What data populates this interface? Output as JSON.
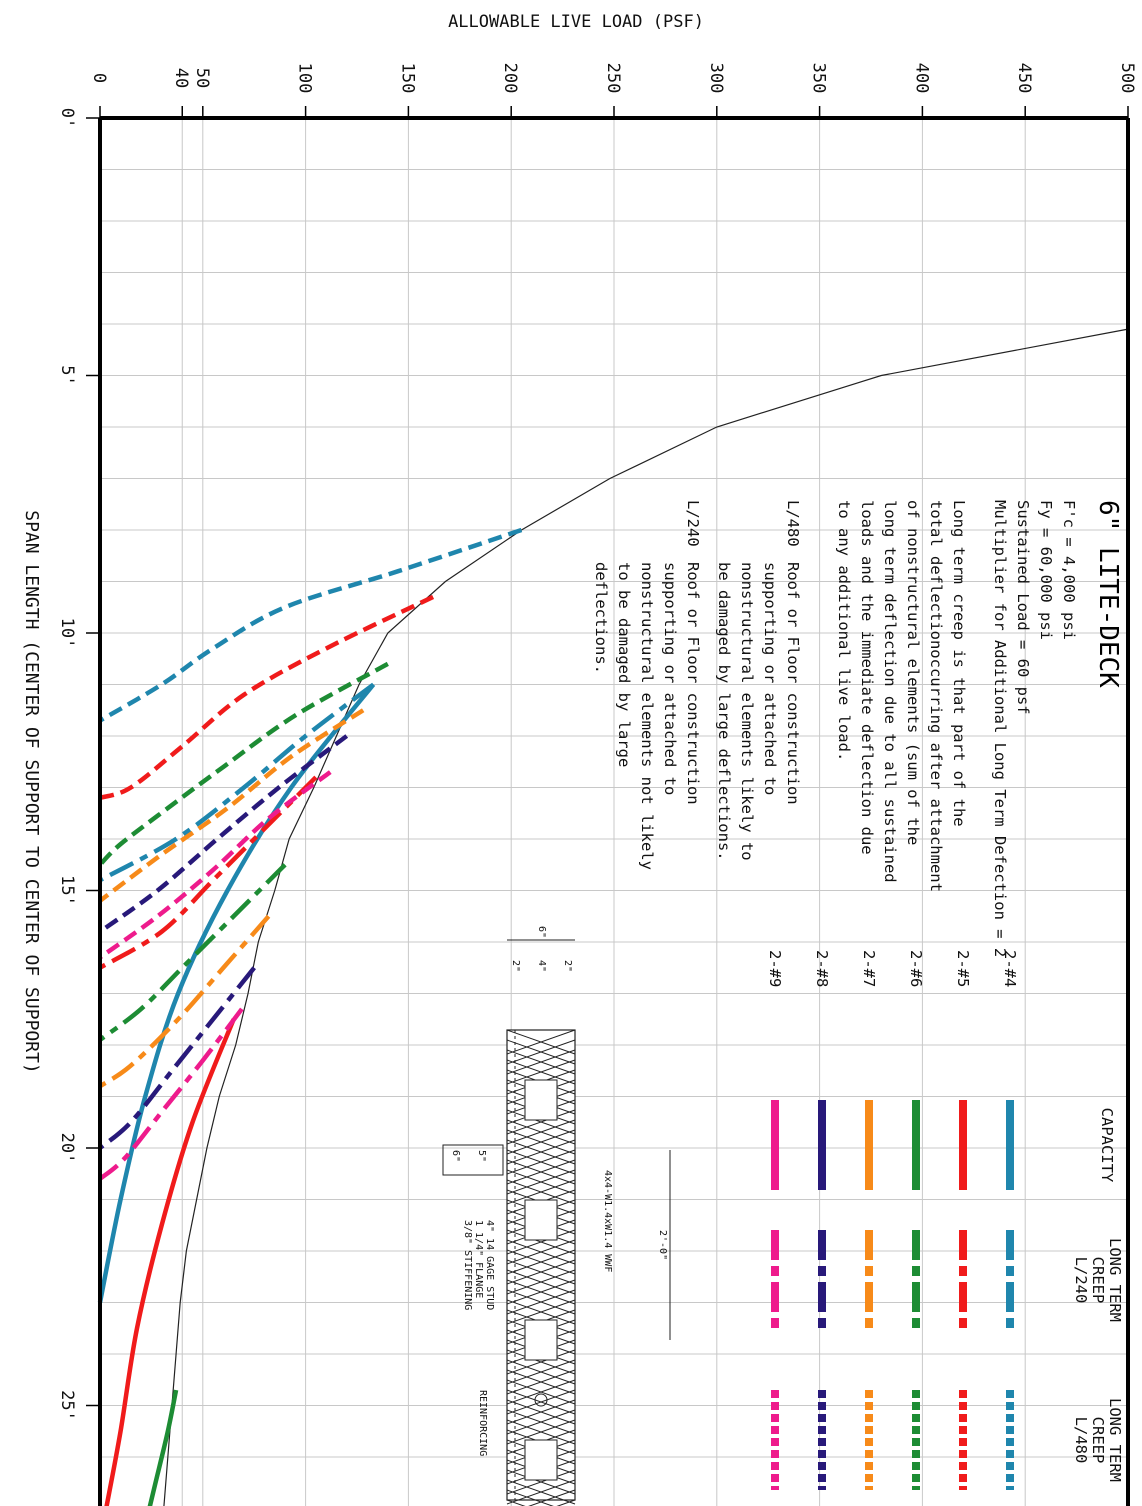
{
  "axis_top_title": "ALLOWABLE LIVE LOAD  (PSF)",
  "axis_side_title": "SPAN LENGTH   (CENTER OF SUPPORT TO CENTER OF SUPPORT)",
  "title": "6\" LITE-DECK",
  "specs": [
    "F'c = 4,000 psi",
    "Fy = 60,000 psi",
    "Sustained Load = 60 psf",
    "Multiplier for Additional Long Term Defection = 2"
  ],
  "creep_note": [
    "Long term creep is that part of the",
    "total deflectionoccurring after attachment",
    "of nonstructural elements (sum of the",
    "long term deflection due to all sustained",
    "loads and the immediate deflection due",
    "to any additional live load."
  ],
  "l480_note": {
    "label": "L/480",
    "lines": [
      "Roof or Floor construction",
      "supporting or attached to",
      "nonstructural elements likely to",
      "be damaged by large deflections."
    ]
  },
  "l240_note": {
    "label": "L/240",
    "lines": [
      "Roof or Floor construction",
      "supporting or attached to",
      "nonstructural elements not likely",
      "to be damaged by large",
      "deflections."
    ]
  },
  "legend": {
    "col_capacity": "CAPACITY",
    "col_l240": [
      "LONG TERM",
      "CREEP",
      "L/240"
    ],
    "col_l480": [
      "LONG TERM",
      "CREEP",
      "L/480"
    ],
    "rows": [
      {
        "label": "2-#4",
        "color": "#1f86ad"
      },
      {
        "label": "2-#5",
        "color": "#f01b1b"
      },
      {
        "label": "2-#6",
        "color": "#1d8c34"
      },
      {
        "label": "2-#7",
        "color": "#f78a19"
      },
      {
        "label": "2-#8",
        "color": "#28197a"
      },
      {
        "label": "2-#9",
        "color": "#ee1b8c"
      }
    ]
  },
  "detail": {
    "width_total": "6\"",
    "dims": [
      "2\"",
      "4\"",
      "2\""
    ],
    "pitch": "2'-0\"",
    "wwf": "4x4-W1.4xW1.4 WWF",
    "stud": [
      "4\" 14 GAGE STUD",
      "1 1/4\" FLANGE",
      "3/8\" STIFFENING"
    ],
    "reinforcing": "REINFORCING",
    "depth_a": "6\"",
    "depth_b": "5\""
  },
  "chart_data": {
    "type": "line",
    "title": "6\" LITE-DECK",
    "xlabel": "SPAN LENGTH   (CENTER OF SUPPORT TO CENTER OF SUPPORT)",
    "ylabel": "ALLOWABLE LIVE LOAD  (PSF)",
    "x_unit": "ft",
    "xlim": [
      0,
      27
    ],
    "ylim": [
      0,
      500
    ],
    "x_ticks": [
      0,
      5,
      10,
      15,
      20,
      25
    ],
    "x_tick_labels": [
      "0'",
      "5'",
      "10'",
      "15'",
      "20'",
      "25'"
    ],
    "y_ticks": [
      0,
      40,
      50,
      100,
      150,
      200,
      250,
      300,
      350,
      400,
      450,
      500
    ],
    "y_tick_labels": [
      "0",
      "40",
      "50",
      "100",
      "150",
      "200",
      "250",
      "300",
      "350",
      "400",
      "450",
      "500"
    ],
    "grid": true,
    "capacity_envelope": [
      [
        4.1,
        500
      ],
      [
        5,
        380
      ],
      [
        6,
        300
      ],
      [
        7,
        248
      ],
      [
        8,
        205
      ],
      [
        9,
        168
      ],
      [
        10,
        140
      ],
      [
        11,
        126
      ],
      [
        12,
        115
      ],
      [
        13,
        104
      ],
      [
        14,
        92
      ],
      [
        15,
        85
      ],
      [
        16,
        77
      ],
      [
        17,
        72
      ],
      [
        18,
        66
      ],
      [
        19,
        58
      ],
      [
        20,
        52
      ],
      [
        21,
        47
      ],
      [
        22,
        42
      ],
      [
        23,
        39
      ],
      [
        24,
        37
      ],
      [
        25,
        35
      ],
      [
        26,
        33
      ],
      [
        27,
        31
      ]
    ],
    "series": [
      {
        "name": "2-#4",
        "style": "L/480",
        "color": "#1f86ad",
        "points": [
          [
            8.0,
            205
          ],
          [
            8.8,
            145
          ],
          [
            9.5,
            90
          ],
          [
            10.3,
            55
          ],
          [
            11.0,
            30
          ],
          [
            11.7,
            0
          ]
        ]
      },
      {
        "name": "2-#4",
        "style": "L/240",
        "color": "#1f86ad",
        "points": [
          [
            11.0,
            133
          ],
          [
            12.0,
            100
          ],
          [
            13.0,
            70
          ],
          [
            14.0,
            37
          ],
          [
            14.8,
            0
          ]
        ]
      },
      {
        "name": "2-#4",
        "style": "capacity",
        "color": "#1f86ad",
        "points": [
          [
            11.0,
            133
          ],
          [
            13.0,
            93
          ],
          [
            15.0,
            62
          ],
          [
            17.0,
            38
          ],
          [
            19.0,
            22
          ],
          [
            21.0,
            10
          ],
          [
            23.0,
            0
          ]
        ]
      },
      {
        "name": "2-#5",
        "style": "L/480",
        "color": "#f01b1b",
        "points": [
          [
            9.3,
            162
          ],
          [
            10.3,
            110
          ],
          [
            11.2,
            70
          ],
          [
            12.2,
            40
          ],
          [
            13.0,
            15
          ],
          [
            13.2,
            0
          ]
        ]
      },
      {
        "name": "2-#5",
        "style": "L/240",
        "color": "#f01b1b",
        "points": [
          [
            12.8,
            105
          ],
          [
            13.8,
            80
          ],
          [
            14.8,
            55
          ],
          [
            15.8,
            30
          ],
          [
            16.5,
            0
          ]
        ]
      },
      {
        "name": "2-#5",
        "style": "capacity",
        "color": "#f01b1b",
        "points": [
          [
            17.5,
            65
          ],
          [
            19.5,
            45
          ],
          [
            21.5,
            30
          ],
          [
            23.5,
            18
          ],
          [
            25.5,
            10
          ],
          [
            27.0,
            3
          ]
        ]
      },
      {
        "name": "2-#6",
        "style": "L/480",
        "color": "#1d8c34",
        "points": [
          [
            10.6,
            140
          ],
          [
            11.6,
            95
          ],
          [
            12.6,
            60
          ],
          [
            13.4,
            33
          ],
          [
            14.1,
            10
          ],
          [
            14.5,
            0
          ]
        ]
      },
      {
        "name": "2-#6",
        "style": "L/240",
        "color": "#1d8c34",
        "points": [
          [
            14.5,
            90
          ],
          [
            15.5,
            65
          ],
          [
            16.5,
            40
          ],
          [
            17.3,
            20
          ],
          [
            17.9,
            0
          ]
        ]
      },
      {
        "name": "2-#6",
        "style": "capacity",
        "color": "#1d8c34",
        "points": [
          [
            24.7,
            37
          ],
          [
            25.5,
            33
          ],
          [
            26.5,
            27
          ],
          [
            27.0,
            24
          ]
        ]
      },
      {
        "name": "2-#7",
        "style": "L/480",
        "color": "#f78a19",
        "points": [
          [
            11.5,
            128
          ],
          [
            12.4,
            93
          ],
          [
            13.4,
            62
          ],
          [
            14.3,
            30
          ],
          [
            15.2,
            0
          ]
        ]
      },
      {
        "name": "2-#7",
        "style": "L/240",
        "color": "#f78a19",
        "points": [
          [
            15.5,
            82
          ],
          [
            16.5,
            60
          ],
          [
            17.5,
            38
          ],
          [
            18.4,
            15
          ],
          [
            18.8,
            0
          ]
        ]
      },
      {
        "name": "2-#8",
        "style": "L/480",
        "color": "#28197a",
        "points": [
          [
            12.0,
            120
          ],
          [
            13.0,
            87
          ],
          [
            14.0,
            57
          ],
          [
            15.0,
            28
          ],
          [
            15.8,
            0
          ]
        ]
      },
      {
        "name": "2-#8",
        "style": "L/240",
        "color": "#28197a",
        "points": [
          [
            16.5,
            75
          ],
          [
            17.5,
            55
          ],
          [
            18.5,
            35
          ],
          [
            19.5,
            15
          ],
          [
            20.0,
            0
          ]
        ]
      },
      {
        "name": "2-#9",
        "style": "L/480",
        "color": "#ee1b8c",
        "points": [
          [
            12.7,
            112
          ],
          [
            13.6,
            82
          ],
          [
            14.6,
            55
          ],
          [
            15.5,
            28
          ],
          [
            16.3,
            0
          ]
        ]
      },
      {
        "name": "2-#9",
        "style": "L/240",
        "color": "#ee1b8c",
        "points": [
          [
            17.3,
            69
          ],
          [
            18.3,
            50
          ],
          [
            19.3,
            30
          ],
          [
            20.2,
            12
          ],
          [
            20.6,
            0
          ]
        ]
      }
    ]
  }
}
